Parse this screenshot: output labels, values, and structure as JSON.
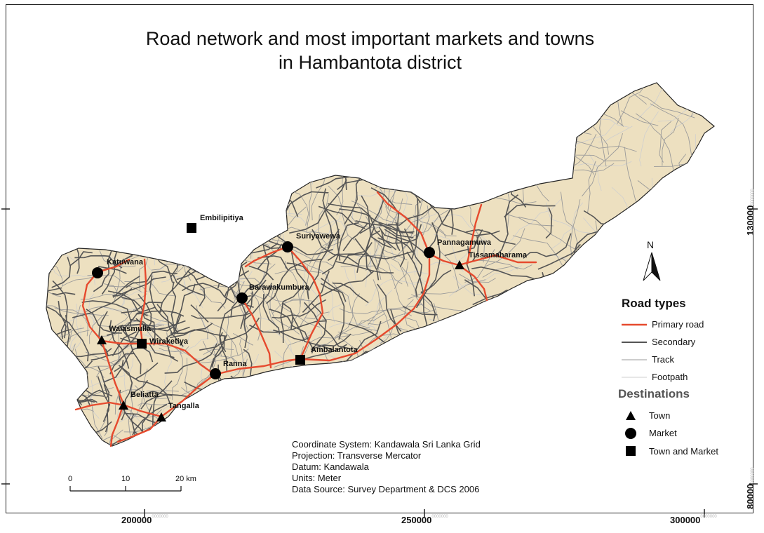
{
  "title_line1": "Road network and most important markets and towns",
  "title_line2": "in Hambantota district",
  "axis": {
    "x_ticks": [
      {
        "label": "200000",
        "small": "0000000"
      },
      {
        "label": "250000",
        "small": "0000000"
      },
      {
        "label": "300000",
        "small": "0000000"
      }
    ],
    "y_ticks": [
      {
        "label": "130000",
        "small": "0000000"
      },
      {
        "label": "80000",
        "small": "0000000"
      }
    ]
  },
  "north_label": "N",
  "legend": {
    "road_title": "Road types",
    "roads": [
      "Primary road",
      "Secondary",
      "Track",
      "Footpath"
    ],
    "dest_title": "Destinations",
    "destinations": [
      "Town",
      "Market",
      "Town and Market"
    ]
  },
  "places": [
    {
      "name": "Embilipitiya",
      "type": "Town and Market"
    },
    {
      "name": "Suriyawewa",
      "type": "Market"
    },
    {
      "name": "Pannagamuwa",
      "type": "Market"
    },
    {
      "name": "Tissamaharama",
      "type": "Town"
    },
    {
      "name": "Katuwana",
      "type": "Market"
    },
    {
      "name": "Barawakumbura",
      "type": "Market"
    },
    {
      "name": "Walasmulla",
      "type": "Town"
    },
    {
      "name": "Wiraketiya",
      "type": "Town and Market"
    },
    {
      "name": "Ambalantota",
      "type": "Town and Market"
    },
    {
      "name": "Ranna",
      "type": "Market"
    },
    {
      "name": "Beliatta",
      "type": "Town"
    },
    {
      "name": "Tangalla",
      "type": "Town"
    }
  ],
  "metadata": [
    "Coordinate System: Kandawala Sri Lanka Grid",
    "Projection: Transverse Mercator",
    "Datum: Kandawala",
    "Units: Meter",
    "Data Source: Survey Department & DCS 2006"
  ],
  "scale_bar": {
    "ticks": [
      "0",
      "10",
      "20 km"
    ]
  },
  "colors": {
    "land": "#ede0c0",
    "primary_road": "#e64a2e",
    "secondary_road": "#555555",
    "track": "#9a9a9a",
    "footpath": "#cfcfcf",
    "outline": "#222222"
  },
  "icons": {
    "town": "triangle",
    "market": "circle",
    "town_and_market": "square",
    "north": "north-arrow"
  }
}
